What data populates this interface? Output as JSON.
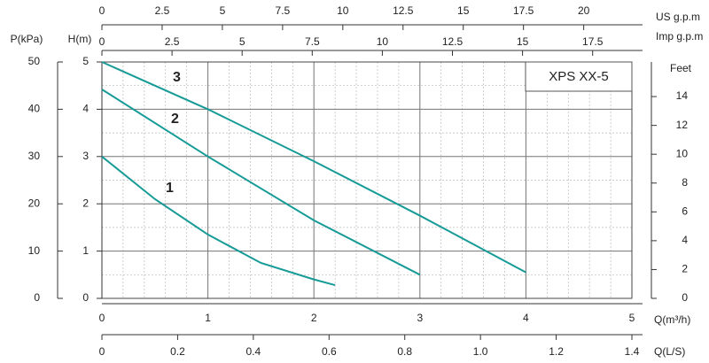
{
  "chart_data": {
    "type": "line",
    "title": "XPS  XX-5",
    "xlabel": "Q(m³/h)",
    "xlim": [
      0,
      5
    ],
    "xticks": [
      0,
      1,
      2,
      3,
      4,
      5
    ],
    "x2label": "US g.p.m",
    "x2lim": [
      0,
      22
    ],
    "x2ticks": [
      0,
      2.5,
      5,
      7.5,
      10,
      12.5,
      15,
      17.5,
      20
    ],
    "x3label": "Imp g.p.m",
    "x3lim": [
      0,
      18.9
    ],
    "x3ticks": [
      0,
      2.5,
      5,
      7.5,
      10,
      12.5,
      15,
      17.5
    ],
    "x4label": "Q(L/S)",
    "x4lim": [
      0,
      1.4
    ],
    "x4ticks": [
      0,
      0.2,
      0.4,
      0.6,
      0.8,
      {
        "value": 1,
        "label": "1.0"
      },
      1.2,
      1.4
    ],
    "ylabel": "H(m)",
    "ylim": [
      0,
      5
    ],
    "yticks": [
      0,
      1,
      2,
      3,
      4,
      5
    ],
    "y2label": "Feet",
    "y2lim": [
      0,
      16.4
    ],
    "y2ticks": [
      0,
      2,
      4,
      6,
      8,
      10,
      12,
      14
    ],
    "y3label": "P(kPa)",
    "y3lim": [
      0,
      50
    ],
    "y3ticks": [
      0,
      10,
      20,
      30,
      40,
      50
    ],
    "grid": true,
    "xminor": 0.2,
    "yminor": 0.5,
    "series": [
      {
        "name": "1",
        "color": "#169b97",
        "x": [
          0,
          0.5,
          1,
          1.5,
          2,
          2.2
        ],
        "values": [
          3.0,
          2.1,
          1.35,
          0.75,
          0.4,
          0.28
        ]
      },
      {
        "name": "2",
        "color": "#169b97",
        "x": [
          0,
          1,
          2,
          3
        ],
        "values": [
          4.42,
          3.0,
          1.65,
          0.5
        ]
      },
      {
        "name": "3",
        "color": "#169b97",
        "x": [
          0,
          1,
          2,
          3,
          4
        ],
        "values": [
          5.0,
          4.0,
          2.9,
          1.75,
          0.55
        ]
      }
    ]
  }
}
